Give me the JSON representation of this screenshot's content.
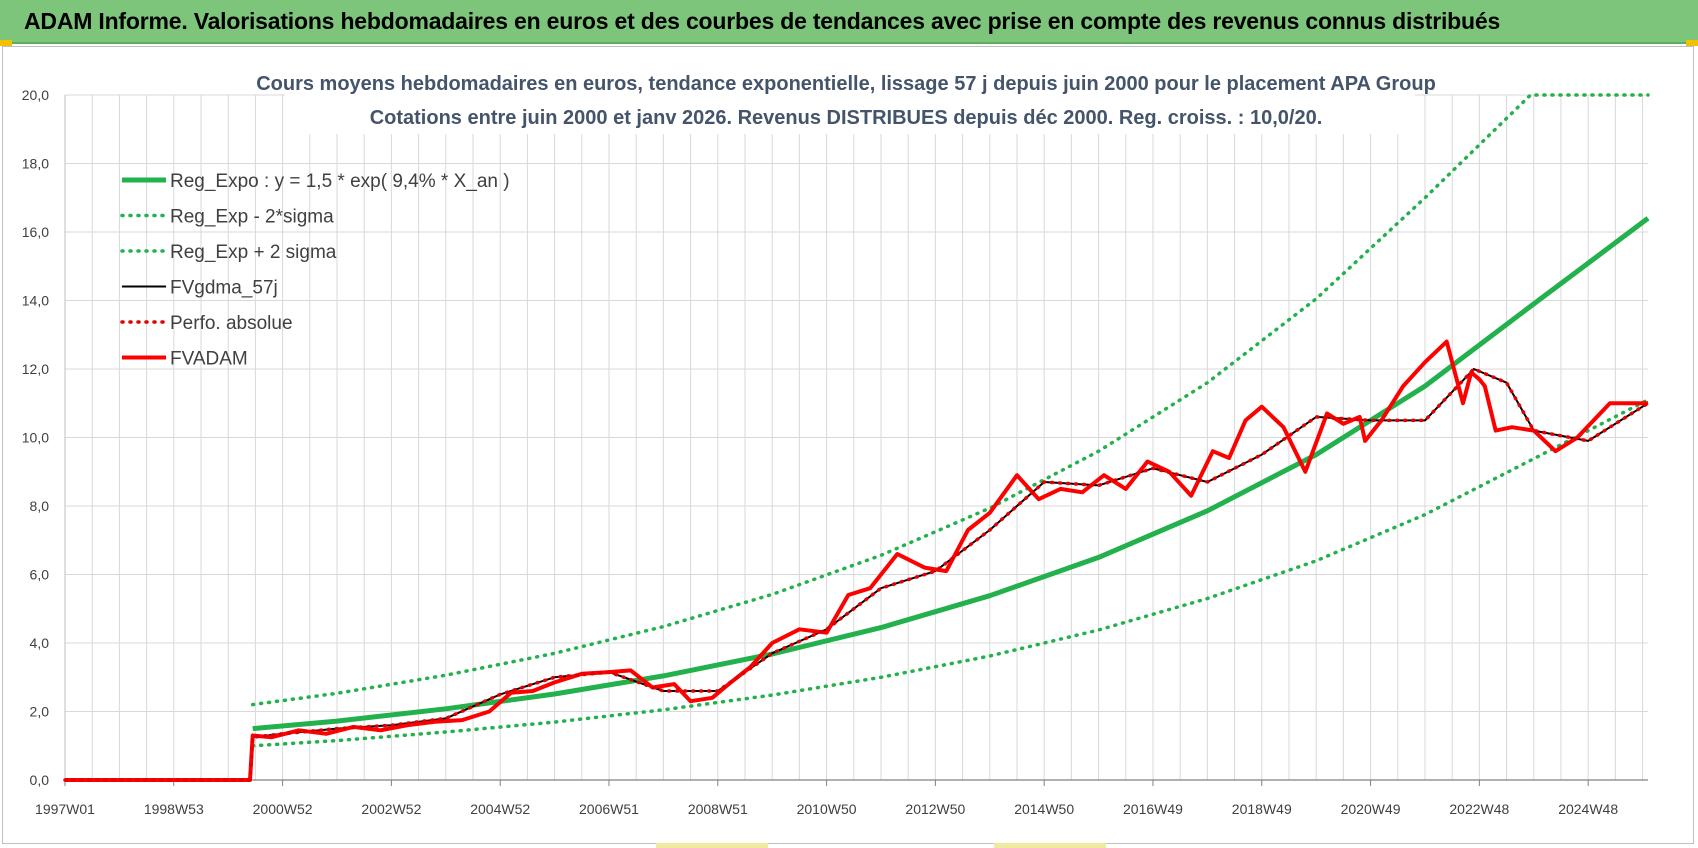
{
  "header": {
    "title": "ADAM Informe. Valorisations hebdomadaires en euros et des courbes de tendances avec prise en compte des revenus connus distribués"
  },
  "colors": {
    "header_bg": "#7dc57a",
    "reg_expo": "#22b14c",
    "sigma_lines": "#22b14c",
    "fvgdma": "#000000",
    "perfo": "#e00000",
    "fvadam": "#ff0000",
    "grid": "#d9d9d9",
    "title_text": "#44546a"
  },
  "chart_data": {
    "type": "line",
    "title": "Cours moyens hebdomadaires en euros, tendance exponentielle, lissage 57 j depuis juin 2000 pour le placement APA Group",
    "subtitle": "Cotations entre juin 2000 et janv 2026. Revenus DISTRIBUES depuis déc 2000. Reg. croiss. : 10,0/20.",
    "xlabel": "",
    "ylabel": "",
    "ylim": [
      0,
      20
    ],
    "xlim": [
      1997.0,
      2026.1
    ],
    "grid": true,
    "legend_position": "top-left",
    "y_ticks": [
      "0,0",
      "2,0",
      "4,0",
      "6,0",
      "8,0",
      "10,0",
      "12,0",
      "14,0",
      "16,0",
      "18,0",
      "20,0"
    ],
    "x_ticks": [
      {
        "label": "1997W01",
        "x": 1997.0
      },
      {
        "label": "1998W53",
        "x": 1999.0
      },
      {
        "label": "2000W52",
        "x": 2001.0
      },
      {
        "label": "2002W52",
        "x": 2003.0
      },
      {
        "label": "2004W52",
        "x": 2005.0
      },
      {
        "label": "2006W51",
        "x": 2007.0
      },
      {
        "label": "2008W51",
        "x": 2009.0
      },
      {
        "label": "2010W50",
        "x": 2011.0
      },
      {
        "label": "2012W50",
        "x": 2013.0
      },
      {
        "label": "2014W50",
        "x": 2015.0
      },
      {
        "label": "2016W49",
        "x": 2017.0
      },
      {
        "label": "2018W49",
        "x": 2019.0
      },
      {
        "label": "2020W49",
        "x": 2021.0
      },
      {
        "label": "2022W48",
        "x": 2023.0
      },
      {
        "label": "2024W48",
        "x": 2025.0
      }
    ],
    "series": [
      {
        "name": "Reg_Expo : y = 1,5 * exp( 9,4% *  X_an )",
        "style": "solid-thick",
        "color": "#22b14c",
        "x": [
          2000.45,
          2002,
          2004,
          2006,
          2008,
          2010,
          2012,
          2014,
          2016,
          2018,
          2020,
          2022,
          2024,
          2026.1
        ],
        "y": [
          1.5,
          1.72,
          2.08,
          2.51,
          3.04,
          3.68,
          4.45,
          5.38,
          6.5,
          7.86,
          9.5,
          11.5,
          13.9,
          16.4
        ]
      },
      {
        "name": "Reg_Exp - 2*sigma",
        "style": "dotted",
        "color": "#22b14c",
        "x": [
          2000.45,
          2002,
          2004,
          2006,
          2008,
          2010,
          2012,
          2014,
          2016,
          2018,
          2020,
          2022,
          2024,
          2026.1
        ],
        "y": [
          1.0,
          1.15,
          1.4,
          1.69,
          2.05,
          2.48,
          3.0,
          3.62,
          4.38,
          5.3,
          6.4,
          7.75,
          9.38,
          11.1
        ]
      },
      {
        "name": "Reg_Exp + 2 sigma",
        "style": "dotted",
        "color": "#22b14c",
        "x": [
          2000.45,
          2002,
          2004,
          2006,
          2008,
          2010,
          2012,
          2014,
          2016,
          2018,
          2020,
          2022,
          2023.94,
          2026.1
        ],
        "y": [
          2.2,
          2.53,
          3.06,
          3.7,
          4.48,
          5.42,
          6.56,
          7.94,
          9.6,
          11.6,
          14.05,
          17.0,
          20.0,
          20.0
        ]
      },
      {
        "name": "FVgdma_57j",
        "style": "solid",
        "color": "#000000",
        "x": [
          1997.0,
          2000.4,
          2000.45,
          2001.0,
          2002.0,
          2003.0,
          2004.0,
          2005.0,
          2006.0,
          2007.0,
          2008.0,
          2009.0,
          2010.0,
          2011.0,
          2012.0,
          2013.0,
          2014.0,
          2015.0,
          2016.0,
          2017.0,
          2018.0,
          2019.0,
          2020.0,
          2021.0,
          2022.0,
          2022.9,
          2023.5,
          2024.0,
          2025.0,
          2026.1
        ],
        "y": [
          0,
          0,
          1.25,
          1.35,
          1.5,
          1.6,
          1.8,
          2.5,
          3.0,
          3.15,
          2.6,
          2.6,
          3.7,
          4.4,
          5.6,
          6.1,
          7.3,
          8.7,
          8.6,
          9.1,
          8.7,
          9.5,
          10.6,
          10.5,
          10.5,
          12.0,
          11.6,
          10.2,
          9.9,
          11.0
        ]
      },
      {
        "name": "Perfo. absolue",
        "style": "dotted",
        "color": "#e00000",
        "x": [
          1997.0,
          2000.4,
          2000.45,
          2001.0,
          2002.0,
          2003.0,
          2004.0,
          2005.0,
          2006.0,
          2007.0,
          2008.0,
          2009.0,
          2010.0,
          2011.0,
          2012.0,
          2013.0,
          2014.0,
          2015.0,
          2016.0,
          2017.0,
          2018.0,
          2019.0,
          2020.0,
          2021.0,
          2022.0,
          2022.9,
          2023.5,
          2024.0,
          2025.0,
          2026.1
        ],
        "y": [
          0,
          0,
          1.25,
          1.35,
          1.5,
          1.6,
          1.8,
          2.5,
          3.0,
          3.15,
          2.6,
          2.6,
          3.7,
          4.4,
          5.6,
          6.1,
          7.3,
          8.7,
          8.6,
          9.1,
          8.7,
          9.5,
          10.6,
          10.5,
          10.5,
          12.0,
          11.6,
          10.2,
          9.9,
          11.0
        ]
      },
      {
        "name": "FVADAM",
        "style": "solid-thick",
        "color": "#ff0000",
        "x": [
          1997.0,
          2000.4,
          2000.45,
          2000.8,
          2001.3,
          2001.8,
          2002.3,
          2002.8,
          2003.3,
          2003.8,
          2004.3,
          2004.8,
          2005.2,
          2005.6,
          2006.0,
          2006.5,
          2007.0,
          2007.4,
          2007.8,
          2008.2,
          2008.5,
          2008.9,
          2009.2,
          2009.6,
          2010.0,
          2010.5,
          2011.0,
          2011.4,
          2011.8,
          2012.3,
          2012.8,
          2013.2,
          2013.6,
          2014.0,
          2014.5,
          2014.9,
          2015.3,
          2015.7,
          2016.1,
          2016.5,
          2016.9,
          2017.3,
          2017.7,
          2018.1,
          2018.4,
          2018.7,
          2019.0,
          2019.4,
          2019.8,
          2020.2,
          2020.5,
          2020.8,
          2020.9,
          2021.2,
          2021.6,
          2022.0,
          2022.4,
          2022.7,
          2022.85,
          2023.0,
          2023.1,
          2023.3,
          2023.6,
          2024.0,
          2024.4,
          2024.8,
          2025.1,
          2025.4,
          2025.8,
          2026.1
        ],
        "y": [
          0,
          0,
          1.3,
          1.25,
          1.45,
          1.35,
          1.55,
          1.45,
          1.6,
          1.7,
          1.75,
          2.0,
          2.55,
          2.6,
          2.85,
          3.1,
          3.15,
          3.2,
          2.7,
          2.8,
          2.3,
          2.4,
          2.8,
          3.3,
          4.0,
          4.4,
          4.3,
          5.4,
          5.6,
          6.6,
          6.2,
          6.1,
          7.3,
          7.8,
          8.9,
          8.2,
          8.5,
          8.4,
          8.9,
          8.5,
          9.3,
          9.0,
          8.3,
          9.6,
          9.4,
          10.5,
          10.9,
          10.3,
          9.0,
          10.7,
          10.4,
          10.6,
          9.9,
          10.5,
          11.5,
          12.2,
          12.8,
          11.0,
          11.9,
          11.7,
          11.5,
          10.2,
          10.3,
          10.2,
          9.6,
          10.0,
          10.5,
          11.0,
          11.0,
          11.0
        ]
      }
    ]
  }
}
